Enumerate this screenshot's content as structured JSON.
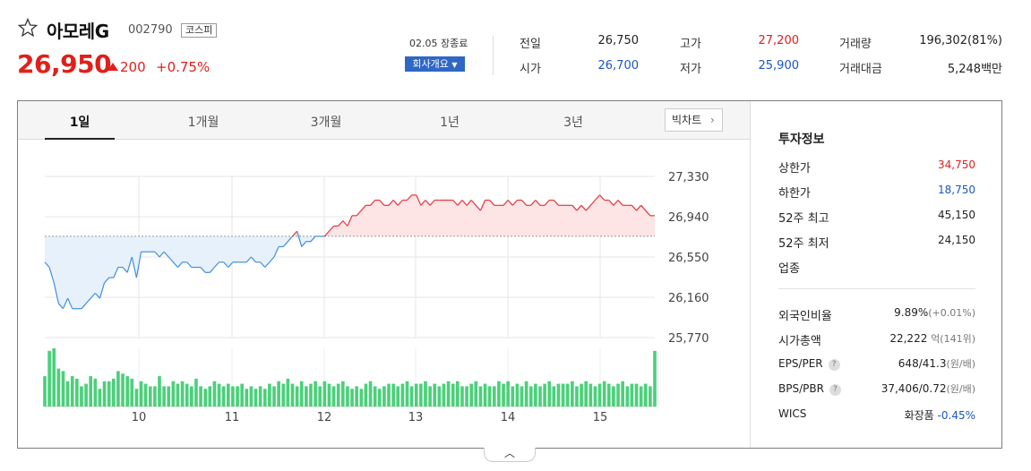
{
  "stock": {
    "name": "아모레G",
    "code": "002790",
    "market": "코스피",
    "price": "26,950",
    "change": "200",
    "change_pct": "+0.75%",
    "close_time": "02.05 장종료",
    "company_button": "회사개요"
  },
  "quote": {
    "prev_label": "전일",
    "prev": "26,750",
    "high_label": "고가",
    "high": "27,200",
    "volume_label": "거래량",
    "volume": "196,302(81%)",
    "open_label": "시가",
    "open": "26,700",
    "low_label": "저가",
    "low": "25,900",
    "amount_label": "거래대금",
    "amount": "5,248백만"
  },
  "tabs": [
    "1일",
    "1개월",
    "3개월",
    "1년",
    "3년"
  ],
  "big_chart_label": "빅차트",
  "info": {
    "title": "투자정보",
    "upper_label": "상한가",
    "upper": "34,750",
    "lower_label": "하한가",
    "lower": "18,750",
    "w52_high_label": "52주 최고",
    "w52_high": "45,150",
    "w52_low_label": "52주 최저",
    "w52_low": "24,150",
    "sector_label": "업종",
    "foreign_label": "외국인비율",
    "foreign": "9.89%",
    "foreign_sub": "(+0.01%)",
    "mcap_label": "시가총액",
    "mcap": "22,222",
    "mcap_unit": "억",
    "mcap_sub": "(141위)",
    "eps_label": "EPS/PER",
    "eps": "648/41.3",
    "eps_unit": "(원/배)",
    "bps_label": "BPS/PBR",
    "bps": "37,406/0.72",
    "bps_unit": "(원/배)",
    "wics_label": "WICS",
    "wics": "화장품",
    "wics_pct": "-0.45%"
  },
  "colors": {
    "up": "#e0201b",
    "down": "#1a56c4",
    "volume": "#4bd07a"
  },
  "chart_data": {
    "type": "line",
    "y_ticks": [
      "27,330",
      "26,940",
      "26,550",
      "26,160",
      "25,770"
    ],
    "x_ticks": [
      "10",
      "11",
      "12",
      "13",
      "14",
      "15"
    ],
    "ylim": [
      25770,
      27330
    ],
    "baseline": 26750,
    "x": [
      0,
      1,
      2,
      3,
      4,
      5,
      6,
      7,
      8,
      9,
      10,
      11,
      12,
      13,
      14,
      15,
      16,
      17,
      18,
      19,
      20,
      21,
      22,
      23,
      24,
      25,
      26,
      27,
      28,
      29,
      30,
      31,
      32,
      33,
      34,
      35,
      36,
      37,
      38,
      39,
      40,
      41,
      42,
      43,
      44,
      45,
      46,
      47,
      48,
      49,
      50,
      51,
      52,
      53,
      54,
      55,
      56,
      57,
      58,
      59,
      60,
      61,
      62,
      63,
      64,
      65,
      66,
      67,
      68,
      69,
      70,
      71,
      72,
      73,
      74,
      75,
      76,
      77,
      78,
      79,
      80,
      81,
      82,
      83,
      84,
      85,
      86,
      87,
      88,
      89,
      90,
      91,
      92,
      93,
      94,
      95,
      96,
      97,
      98,
      99,
      100,
      101,
      102,
      103,
      104,
      105,
      106,
      107,
      108,
      109,
      110,
      111,
      112,
      113,
      114,
      115,
      116,
      117,
      118,
      119,
      120,
      121,
      122,
      123,
      124,
      125,
      126,
      127,
      128,
      129,
      130,
      131,
      132,
      133
    ],
    "prices": [
      26500,
      26450,
      26300,
      26100,
      26050,
      26150,
      26050,
      26050,
      26050,
      26100,
      26150,
      26200,
      26150,
      26300,
      26350,
      26350,
      26450,
      26450,
      26400,
      26550,
      26350,
      26600,
      26600,
      26600,
      26600,
      26550,
      26600,
      26550,
      26500,
      26450,
      26500,
      26500,
      26450,
      26450,
      26450,
      26400,
      26400,
      26450,
      26500,
      26500,
      26450,
      26500,
      26500,
      26500,
      26500,
      26550,
      26500,
      26500,
      26450,
      26500,
      26550,
      26650,
      26650,
      26700,
      26750,
      26800,
      26650,
      26700,
      26700,
      26750,
      26750,
      26750,
      26800,
      26850,
      26850,
      26900,
      26850,
      26950,
      26950,
      27000,
      27050,
      27050,
      27100,
      27100,
      27050,
      27050,
      27100,
      27050,
      27100,
      27100,
      27150,
      27150,
      27050,
      27100,
      27050,
      27100,
      27100,
      27100,
      27100,
      27100,
      27050,
      27100,
      27050,
      27100,
      27050,
      27000,
      27100,
      27100,
      27050,
      27050,
      27050,
      27100,
      27050,
      27100,
      27100,
      27050,
      27050,
      27100,
      27050,
      27050,
      27100,
      27100,
      27050,
      27050,
      27050,
      27050,
      27000,
      27050,
      27000,
      27050,
      27100,
      27150,
      27100,
      27100,
      27050,
      27100,
      27050,
      27050,
      27050,
      27000,
      27050,
      27000,
      26950,
      26950
    ],
    "volumes": [
      12,
      22,
      23,
      15,
      14,
      10,
      12,
      11,
      8,
      9,
      12,
      11,
      7,
      10,
      10,
      11,
      14,
      13,
      12,
      11,
      7,
      10,
      9,
      8,
      8,
      12,
      8,
      8,
      10,
      9,
      10,
      9,
      8,
      11,
      8,
      7,
      8,
      10,
      9,
      8,
      9,
      8,
      8,
      9,
      7,
      8,
      7,
      8,
      7,
      9,
      8,
      10,
      9,
      11,
      9,
      8,
      10,
      8,
      9,
      10,
      8,
      10,
      9,
      8,
      9,
      10,
      8,
      7,
      8,
      7,
      9,
      10,
      8,
      7,
      8,
      9,
      9,
      8,
      9,
      10,
      8,
      9,
      9,
      10,
      8,
      9,
      8,
      9,
      10,
      9,
      10,
      8,
      8,
      9,
      10,
      8,
      9,
      8,
      8,
      10,
      9,
      10,
      8,
      9,
      8,
      10,
      8,
      9,
      8,
      9,
      10,
      8,
      9,
      9,
      9,
      10,
      8,
      9,
      10,
      9,
      8,
      9,
      10,
      9,
      8,
      9,
      10,
      8,
      9,
      9,
      8,
      9,
      8,
      22
    ]
  }
}
